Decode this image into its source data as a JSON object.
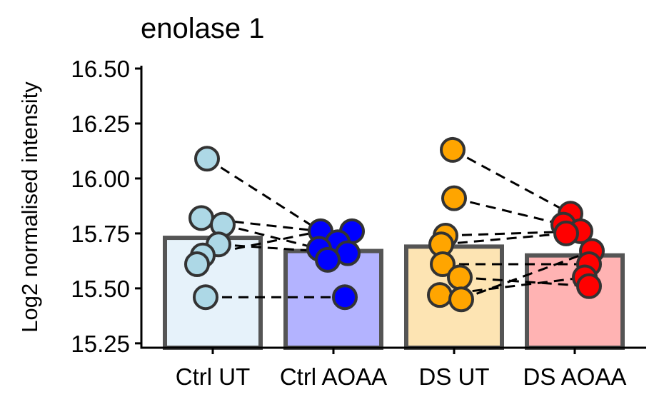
{
  "chart_data": {
    "type": "bar",
    "title": "enolase 1",
    "xlabel": "",
    "ylabel": "Log2 normalised intensity",
    "ylim": [
      15.23,
      16.5
    ],
    "yticks": [
      "15.25",
      "15.50",
      "15.75",
      "16.00",
      "16.25",
      "16.50"
    ],
    "categories": [
      "Ctrl UT",
      "Ctrl AOAA",
      "DS UT",
      "DS AOAA"
    ],
    "bar_values": [
      15.73,
      15.67,
      15.69,
      15.65
    ],
    "bar_fill_colors": [
      "#e6f2fa",
      "#b3b3ff",
      "#fde4b3",
      "#ffb3b3"
    ],
    "bar_outline_color": "#555555",
    "point_colors": [
      "#add8e6",
      "#0000ff",
      "#ffa500",
      "#ff0000"
    ],
    "points": [
      [
        16.09,
        15.82,
        15.79,
        15.7,
        15.65,
        15.61,
        15.46
      ],
      [
        15.76,
        15.76,
        15.71,
        15.68,
        15.66,
        15.63,
        15.46
      ],
      [
        16.13,
        15.91,
        15.74,
        15.7,
        15.61,
        15.55,
        15.47,
        15.45
      ],
      [
        15.84,
        15.79,
        15.76,
        15.75,
        15.67,
        15.61,
        15.55,
        15.51
      ]
    ],
    "pairs": [
      [
        0,
        16.09,
        1,
        15.71
      ],
      [
        0,
        15.82,
        1,
        15.76
      ],
      [
        0,
        15.79,
        1,
        15.68
      ],
      [
        0,
        15.7,
        1,
        15.66
      ],
      [
        0,
        15.65,
        1,
        15.76
      ],
      [
        0,
        15.46,
        1,
        15.46
      ],
      [
        2,
        16.13,
        3,
        15.84
      ],
      [
        2,
        15.91,
        3,
        15.79
      ],
      [
        2,
        15.74,
        3,
        15.76
      ],
      [
        2,
        15.7,
        3,
        15.75
      ],
      [
        2,
        15.61,
        3,
        15.61
      ],
      [
        2,
        15.55,
        3,
        15.51
      ],
      [
        2,
        15.47,
        3,
        15.55
      ],
      [
        2,
        15.45,
        3,
        15.67
      ]
    ]
  }
}
